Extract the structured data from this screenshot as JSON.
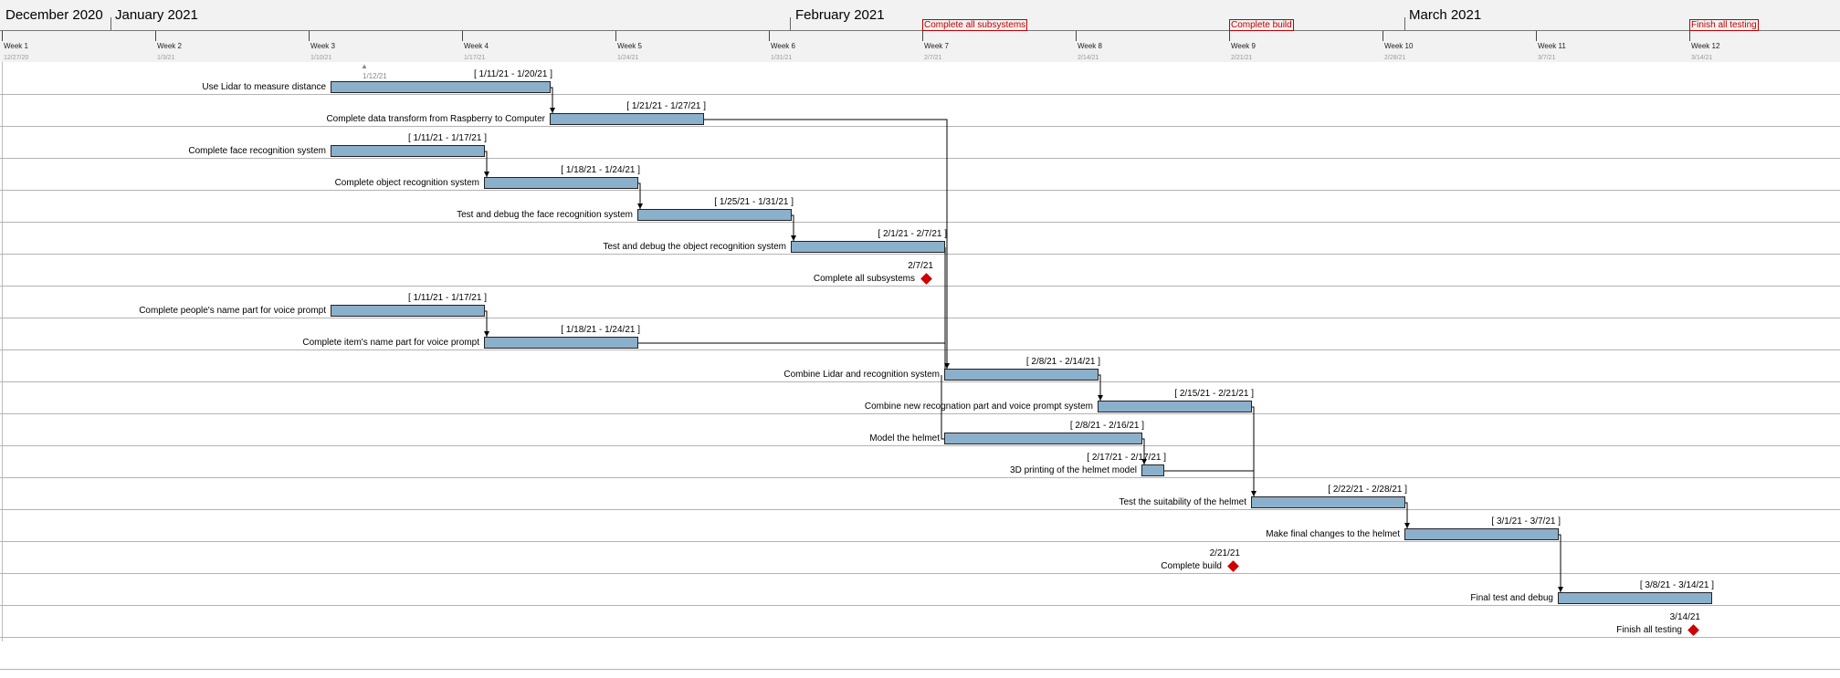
{
  "timeline": {
    "months": [
      "December 2020",
      "January 2021",
      "February 2021",
      "March 2021"
    ],
    "weeks": [
      "Week 1",
      "Week 2",
      "Week 3",
      "Week 4",
      "Week 5",
      "Week 6",
      "Week 7",
      "Week 8",
      "Week 9",
      "Week 10",
      "Week 11",
      "Week 12"
    ],
    "week_dates": [
      "12/27/20",
      "1/3/21",
      "1/10/21",
      "1/17/21",
      "1/24/21",
      "1/31/21",
      "2/7/21",
      "2/14/21",
      "2/21/21",
      "2/28/21",
      "3/7/21",
      "3/14/21"
    ],
    "header_milestones": [
      "Complete all subsystems",
      "Complete build",
      "Finish all testing"
    ],
    "today_label": "1/12/21"
  },
  "tasks": [
    {
      "name": "Use Lidar to measure distance",
      "dates": "[ 1/11/21 - 1/20/21 ]"
    },
    {
      "name": "Complete data transform from Raspberry to Computer",
      "dates": "[ 1/21/21 - 1/27/21 ]"
    },
    {
      "name": "Complete face recognition system",
      "dates": "[ 1/11/21 - 1/17/21 ]"
    },
    {
      "name": "Complete object recognition system",
      "dates": "[ 1/18/21 - 1/24/21 ]"
    },
    {
      "name": "Test and debug the face recognition system",
      "dates": "[ 1/25/21 - 1/31/21 ]"
    },
    {
      "name": "Test and debug the object recognition system",
      "dates": "[ 2/1/21 - 2/7/21 ]"
    },
    {
      "name": "Complete all subsystems",
      "dates": "2/7/21",
      "milestone": true
    },
    {
      "name": "Complete people's name part for voice prompt",
      "dates": "[ 1/11/21 - 1/17/21 ]"
    },
    {
      "name": "Complete item's name part for voice prompt",
      "dates": "[ 1/18/21 - 1/24/21 ]"
    },
    {
      "name": "Combine Lidar and recognition system",
      "dates": "[ 2/8/21 - 2/14/21 ]"
    },
    {
      "name": "Combine new recognation part and voice prompt system",
      "dates": "[ 2/15/21 - 2/21/21 ]"
    },
    {
      "name": "Model the helmet",
      "dates": "[ 2/8/21 - 2/16/21 ]"
    },
    {
      "name": "3D printing of the helmet model",
      "dates": "[ 2/17/21 - 2/17/21 ]"
    },
    {
      "name": "Test the suitability of the helmet",
      "dates": "[ 2/22/21 - 2/28/21 ]"
    },
    {
      "name": "Make final changes to the helmet",
      "dates": "[ 3/1/21 - 3/7/21 ]"
    },
    {
      "name": "Complete build",
      "dates": "2/21/21",
      "milestone": true
    },
    {
      "name": "Final test and debug",
      "dates": "[ 3/8/21 - 3/14/21 ]"
    },
    {
      "name": "Finish all testing",
      "dates": "3/14/21",
      "milestone": true
    }
  ],
  "colors": {
    "bar": "#8bb0cc",
    "milestone": "#d00000",
    "header": "#f2f2f2"
  }
}
